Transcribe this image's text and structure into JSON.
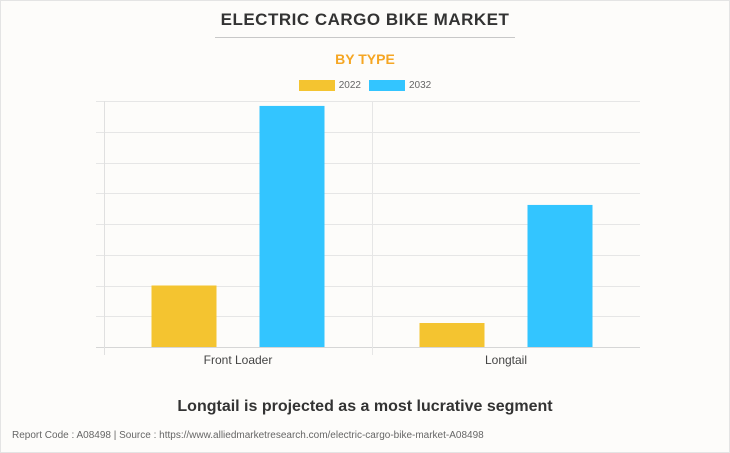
{
  "header": {
    "title": "ELECTRIC CARGO BIKE MARKET",
    "subtitle": "BY TYPE",
    "subtitle_color": "#f5a623"
  },
  "chart_data": {
    "type": "bar",
    "title": "ELECTRIC CARGO BIKE MARKET",
    "subtitle": "BY TYPE",
    "categories": [
      "Front Loader",
      "Longtail"
    ],
    "series": [
      {
        "name": "2022",
        "color": "#f4c430",
        "values": [
          2.0,
          0.78
        ]
      },
      {
        "name": "2032",
        "color": "#33c5ff",
        "values": [
          7.84,
          4.62
        ]
      }
    ],
    "xlabel": "",
    "ylabel": "",
    "ylim": [
      0,
      8
    ],
    "y_tick_labels_visible": false,
    "grid": true,
    "legend_position": "top-center"
  },
  "caption": "Longtail is projected as a most lucrative segment",
  "footer": "Report Code : A08498  |  Source : https://www.alliedmarketresearch.com/electric-cargo-bike-market-A08498"
}
